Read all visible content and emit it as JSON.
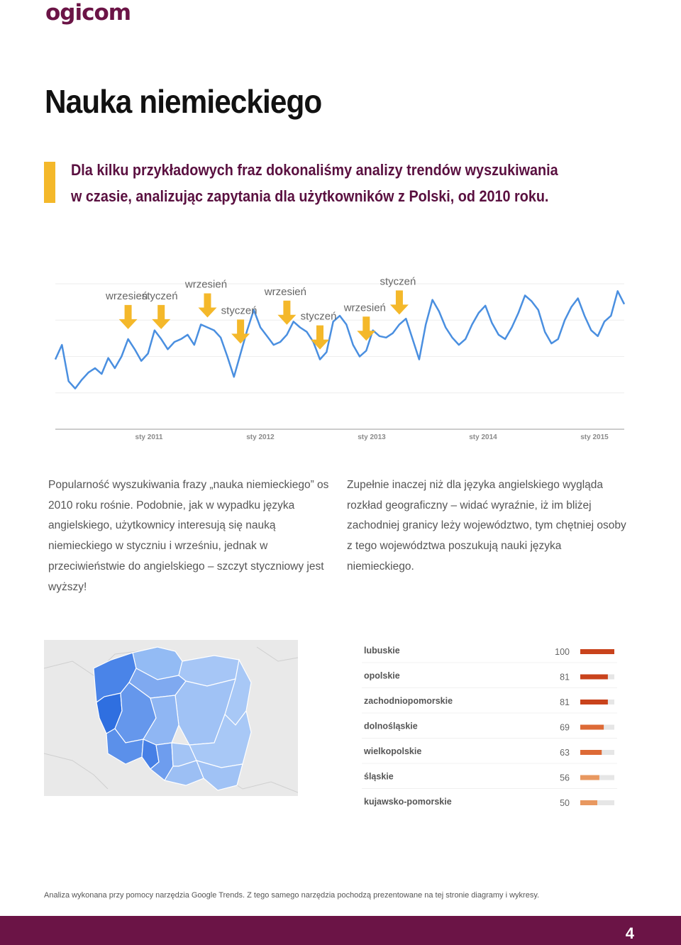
{
  "brand": {
    "logo_text": "ogicom"
  },
  "page": {
    "title": "Nauka niemieckiego",
    "intro_line1": "Dla kilku przykładowych fraz dokonaliśmy analizy trendów wyszukiwania",
    "intro_line2": "w czasie, analizując zapytania dla użytkowników z Polski, od 2010 roku.",
    "para_left": "Popularność wyszukiwania frazy „nauka niemieckiego” os 2010 roku rośnie. Podobnie, jak w wypadku języka angielskiego, użytkownicy interesują się nauką niemieckiego w styczniu i wrześniu, jednak w przeciwieństwie do angielskiego – szczyt styczniowy jest wyższy!",
    "para_right": "Zupełnie inaczej niż dla języka angielskiego wygląda rozkład geograficzny – widać wyraźnie, iż im bliżej zachodniej granicy leży województwo, tym chętniej osoby z tego województwa poszukują nauki języka niemieckiego.",
    "footer_note": "Analiza wykonana przy pomocy narzędzia Google Trends. Z tego samego narzędzia pochodzą prezentowane na tej stronie diagramy i wykresy.",
    "page_number": "4"
  },
  "colors": {
    "brand": "#6b1446",
    "accent": "#f4b82a",
    "line": "#4a8fe0",
    "bar": "#c9431c",
    "bar_track": "#e6e6e6"
  },
  "chart_data": [
    {
      "type": "line",
      "x_ticks": [
        "sty 2011",
        "sty 2012",
        "sty 2013",
        "sty 2014",
        "sty 2015"
      ],
      "series": [
        {
          "values": [
            48,
            58,
            33,
            28,
            34,
            39,
            42,
            38,
            49,
            42,
            50,
            62,
            55,
            47,
            52,
            68,
            62,
            55,
            60,
            62,
            65,
            58,
            72,
            70,
            68,
            63,
            50,
            36,
            52,
            68,
            82,
            70,
            64,
            58,
            60,
            65,
            74,
            70,
            67,
            60,
            48,
            53,
            74,
            78,
            72,
            58,
            50,
            54,
            68,
            64,
            63,
            66,
            72,
            76,
            62,
            48,
            72,
            89,
            81,
            70,
            63,
            58,
            62,
            72,
            80,
            85,
            73,
            65,
            62,
            70,
            80,
            92,
            88,
            82,
            67,
            59,
            62,
            75,
            84,
            90,
            78,
            68,
            64,
            74,
            78,
            95,
            86
          ]
        }
      ],
      "annotations": [
        {
          "label": "wrzesień",
          "index": 11
        },
        {
          "label": "styczeń",
          "index": 16
        },
        {
          "label": "wrzesień",
          "index": 23
        },
        {
          "label": "styczeń",
          "index": 28
        },
        {
          "label": "wrzesień",
          "index": 35
        },
        {
          "label": "styczeń",
          "index": 40
        },
        {
          "label": "wrzesień",
          "index": 47
        },
        {
          "label": "styczeń",
          "index": 52
        }
      ]
    },
    {
      "type": "bar",
      "categories": [
        "lubuskie",
        "opolskie",
        "zachodniopomorskie",
        "dolnośląskie",
        "wielkopolskie",
        "śląskie",
        "kujawsko-pomorskie"
      ],
      "values": [
        100,
        81,
        81,
        69,
        63,
        56,
        50
      ],
      "xlim": [
        0,
        100
      ]
    }
  ]
}
